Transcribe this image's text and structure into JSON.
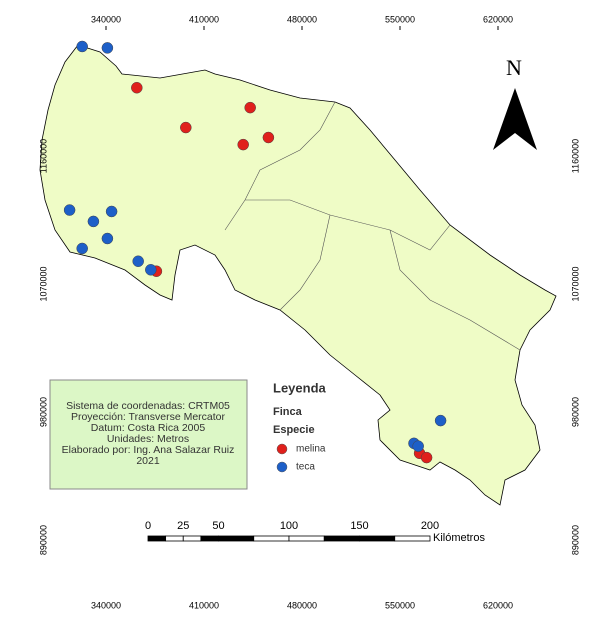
{
  "x_ticks": [
    340000,
    410000,
    480000,
    550000,
    620000
  ],
  "y_ticks": [
    1160000,
    1070000,
    980000,
    890000
  ],
  "north": "N",
  "info_box": {
    "lines": [
      "Sistema de coordenadas: CRTM05",
      "Proyección: Transverse Mercator",
      "Datum: Costa Rica 2005",
      "Unidades: Metros",
      "Elaborado por: Ing. Ana Salazar Ruiz",
      "2021"
    ]
  },
  "legend": {
    "title": "Leyenda",
    "layer": "Finca",
    "field": "Especie",
    "items": [
      {
        "label": "melina",
        "color": "#e0201c",
        "points": [
          [
            362000,
            1208000
          ],
          [
            397000,
            1180000
          ],
          [
            443000,
            1194000
          ],
          [
            456000,
            1173000
          ],
          [
            438000,
            1168000
          ],
          [
            376000,
            1079000
          ],
          [
            564000,
            951000
          ],
          [
            569000,
            948000
          ]
        ]
      },
      {
        "label": "teca",
        "color": "#1d5fc8",
        "points": [
          [
            323000,
            1237000
          ],
          [
            341000,
            1236000
          ],
          [
            314000,
            1122000
          ],
          [
            331000,
            1114000
          ],
          [
            344000,
            1121000
          ],
          [
            341000,
            1102000
          ],
          [
            323000,
            1095000
          ],
          [
            363000,
            1086000
          ],
          [
            372000,
            1080000
          ],
          [
            560000,
            958000
          ],
          [
            563000,
            956000
          ],
          [
            579000,
            974000
          ]
        ]
      }
    ]
  },
  "scale_bar": {
    "ticks": [
      0,
      25,
      50,
      100,
      150,
      200
    ],
    "unit": "Kilómetros"
  }
}
